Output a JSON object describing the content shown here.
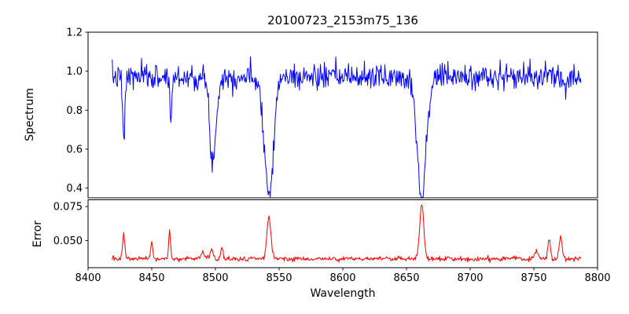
{
  "figure": {
    "background": "#ffffff"
  },
  "chart_data": {
    "type": "line",
    "title": "20100723_2153m75_136",
    "xlabel": "Wavelength",
    "xlim": [
      8400,
      8800
    ],
    "grid": false,
    "legend": "none",
    "xticks": [
      {
        "v": 8400,
        "label": "8400"
      },
      {
        "v": 8450,
        "label": "8450"
      },
      {
        "v": 8500,
        "label": "8500"
      },
      {
        "v": 8550,
        "label": "8550"
      },
      {
        "v": 8600,
        "label": "8600"
      },
      {
        "v": 8650,
        "label": "8650"
      },
      {
        "v": 8700,
        "label": "8700"
      },
      {
        "v": 8750,
        "label": "8750"
      },
      {
        "v": 8800,
        "label": "8800"
      }
    ],
    "panels": [
      {
        "name": "spectrum",
        "ylabel": "Spectrum",
        "ylim": [
          0.35,
          1.2
        ],
        "yticks": [
          {
            "v": 0.4,
            "label": "0.4"
          },
          {
            "v": 0.6,
            "label": "0.6"
          },
          {
            "v": 0.8,
            "label": "0.8"
          },
          {
            "v": 1.0,
            "label": "1.0"
          },
          {
            "v": 1.2,
            "label": "1.2"
          }
        ],
        "line_color": "#0000ff",
        "x_start": 8419,
        "x_end": 8787,
        "x_step": 0.5,
        "baseline": 0.97,
        "noise_sigma": 0.032,
        "noise_seed": 7,
        "features": [
          {
            "x": 8428,
            "amplitude": -0.33,
            "sigma": 0.9
          },
          {
            "x": 8465,
            "amplitude": -0.22,
            "sigma": 0.8
          },
          {
            "x": 8498,
            "amplitude": -0.43,
            "sigma": 2.5
          },
          {
            "x": 8542,
            "amplitude": -0.6,
            "sigma": 3.5
          },
          {
            "x": 8662,
            "amplitude": -0.62,
            "sigma": 3.5
          }
        ]
      },
      {
        "name": "error",
        "ylabel": "Error",
        "ylim": [
          0.03,
          0.08
        ],
        "yticks": [
          {
            "v": 0.05,
            "label": "0.050"
          },
          {
            "v": 0.075,
            "label": "0.075"
          }
        ],
        "line_color": "#ff0000",
        "x_start": 8419,
        "x_end": 8787,
        "x_step": 0.5,
        "baseline": 0.0365,
        "noise_sigma": 0.0009,
        "noise_seed": 13,
        "features": [
          {
            "x": 8428,
            "amplitude": 0.02,
            "sigma": 0.8
          },
          {
            "x": 8450,
            "amplitude": 0.012,
            "sigma": 0.7
          },
          {
            "x": 8464,
            "amplitude": 0.021,
            "sigma": 0.7
          },
          {
            "x": 8490,
            "amplitude": 0.005,
            "sigma": 1.2
          },
          {
            "x": 8497,
            "amplitude": 0.007,
            "sigma": 1.2
          },
          {
            "x": 8505,
            "amplitude": 0.008,
            "sigma": 0.9
          },
          {
            "x": 8542,
            "amplitude": 0.03,
            "sigma": 1.6
          },
          {
            "x": 8662,
            "amplitude": 0.039,
            "sigma": 1.6
          },
          {
            "x": 8752,
            "amplitude": 0.006,
            "sigma": 1.2
          },
          {
            "x": 8762,
            "amplitude": 0.014,
            "sigma": 1.0
          },
          {
            "x": 8771,
            "amplitude": 0.016,
            "sigma": 1.2
          }
        ]
      }
    ]
  }
}
